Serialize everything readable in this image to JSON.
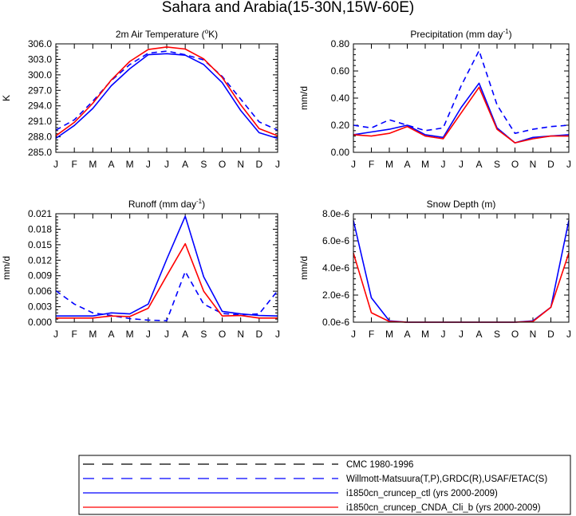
{
  "figure": {
    "title": "Sahara and Arabia(15-30N,15W-60E)"
  },
  "legend": {
    "entries": [
      {
        "label": "CMC 1980-1996",
        "color": "#000000",
        "dash": true
      },
      {
        "label": "Willmott-Matsuura(T,P),GRDC(R),USAF/ETAC(S)",
        "color": "#0000ff",
        "dash": true
      },
      {
        "label": "i1850cn_cruncep_ctl (yrs 2000-2009)",
        "color": "#0000ff",
        "dash": false
      },
      {
        "label": "i1850cn_cruncep_CNDA_Cli_b (yrs 2000-2009)",
        "color": "#ff0000",
        "dash": false
      }
    ]
  },
  "chart_data": [
    {
      "type": "line",
      "title": "2m Air Temperature (°K)",
      "title_parts": {
        "pre": "2m Air Temperature (",
        "sup": "o",
        "post": "K)"
      },
      "xlabel": "",
      "ylabel": "K",
      "categories": [
        "J",
        "F",
        "M",
        "A",
        "M",
        "J",
        "J",
        "A",
        "S",
        "O",
        "N",
        "D",
        "J"
      ],
      "ylim": [
        285.0,
        306.0
      ],
      "yticks": [
        285.0,
        288.0,
        291.0,
        294.0,
        297.0,
        300.0,
        303.0,
        306.0
      ],
      "ytick_labels": [
        "285.0",
        "288.0",
        "291.0",
        "294.0",
        "297.0",
        "300.0",
        "303.0",
        "306.0"
      ],
      "series": [
        {
          "name": "Willmott-Matsuura(T,P),GRDC(R),USAF/ETAC(S)",
          "color": "#0000ff",
          "dash": true,
          "values": [
            289.3,
            291.3,
            294.9,
            298.9,
            302.0,
            304.2,
            304.6,
            303.9,
            302.9,
            299.7,
            295.3,
            290.9,
            289.3
          ]
        },
        {
          "name": "i1850cn_cruncep_ctl (yrs 2000-2009)",
          "color": "#0000ff",
          "dash": false,
          "values": [
            287.7,
            290.2,
            293.5,
            297.9,
            301.2,
            303.9,
            304.1,
            303.8,
            302.0,
            298.5,
            293.1,
            288.8,
            287.7
          ]
        },
        {
          "name": "i1850cn_cruncep_CNDA_Cli_b (yrs 2000-2009)",
          "color": "#ff0000",
          "dash": false,
          "values": [
            288.2,
            290.8,
            294.5,
            299.0,
            302.6,
            304.9,
            305.4,
            305.0,
            303.1,
            299.5,
            294.2,
            289.6,
            288.2
          ]
        }
      ]
    },
    {
      "type": "line",
      "title": "Precipitation (mm day⁻¹)",
      "title_parts": {
        "pre": "Precipitation (mm day",
        "sup": "-1",
        "post": ")"
      },
      "xlabel": "",
      "ylabel": "mm/d",
      "categories": [
        "J",
        "F",
        "M",
        "A",
        "M",
        "J",
        "J",
        "A",
        "S",
        "O",
        "N",
        "D",
        "J"
      ],
      "ylim": [
        0.0,
        0.8
      ],
      "yticks": [
        0.0,
        0.2,
        0.4,
        0.6,
        0.8
      ],
      "ytick_labels": [
        "0.00",
        "0.20",
        "0.40",
        "0.60",
        "0.80"
      ],
      "series": [
        {
          "name": "Willmott-Matsuura(T,P),GRDC(R),USAF/ETAC(S)",
          "color": "#0000ff",
          "dash": true,
          "values": [
            0.2,
            0.18,
            0.24,
            0.2,
            0.16,
            0.18,
            0.49,
            0.75,
            0.35,
            0.14,
            0.17,
            0.19,
            0.2
          ]
        },
        {
          "name": "i1850cn_cruncep_ctl (yrs 2000-2009)",
          "color": "#0000ff",
          "dash": false,
          "values": [
            0.13,
            0.15,
            0.17,
            0.2,
            0.13,
            0.11,
            0.33,
            0.51,
            0.18,
            0.07,
            0.11,
            0.12,
            0.13
          ]
        },
        {
          "name": "i1850cn_cruncep_CNDA_Cli_b (yrs 2000-2009)",
          "color": "#ff0000",
          "dash": false,
          "values": [
            0.13,
            0.12,
            0.14,
            0.19,
            0.12,
            0.1,
            0.29,
            0.48,
            0.17,
            0.07,
            0.1,
            0.12,
            0.12
          ]
        }
      ]
    },
    {
      "type": "line",
      "title": "Runoff (mm day⁻¹)",
      "title_parts": {
        "pre": "Runoff (mm day",
        "sup": "-1",
        "post": ")"
      },
      "xlabel": "",
      "ylabel": "mm/d",
      "categories": [
        "J",
        "F",
        "M",
        "A",
        "M",
        "J",
        "J",
        "A",
        "S",
        "O",
        "N",
        "D",
        "J"
      ],
      "ylim": [
        0.0,
        0.021
      ],
      "yticks": [
        0.0,
        0.003,
        0.006,
        0.009,
        0.012,
        0.015,
        0.018,
        0.021
      ],
      "ytick_labels": [
        "0.000",
        "0.003",
        "0.006",
        "0.009",
        "0.012",
        "0.015",
        "0.018",
        "0.021"
      ],
      "series": [
        {
          "name": "Willmott-Matsuura(T,P),GRDC(R),USAF/ETAC(S)",
          "color": "#0000ff",
          "dash": true,
          "values": [
            0.0061,
            0.0035,
            0.0018,
            0.0013,
            0.0007,
            0.0004,
            0.0003,
            0.0098,
            0.0035,
            0.0017,
            0.0014,
            0.0016,
            0.0061
          ]
        },
        {
          "name": "i1850cn_cruncep_ctl (yrs 2000-2009)",
          "color": "#0000ff",
          "dash": false,
          "values": [
            0.0012,
            0.0012,
            0.0012,
            0.0018,
            0.0016,
            0.0035,
            0.0122,
            0.0205,
            0.0088,
            0.0021,
            0.0016,
            0.0013,
            0.0012
          ]
        },
        {
          "name": "i1850cn_cruncep_CNDA_Cli_b (yrs 2000-2009)",
          "color": "#ff0000",
          "dash": false,
          "values": [
            0.0008,
            0.0008,
            0.0008,
            0.0012,
            0.0011,
            0.0027,
            0.009,
            0.0152,
            0.006,
            0.0012,
            0.0013,
            0.0008,
            0.0008
          ]
        }
      ]
    },
    {
      "type": "line",
      "title": "Snow Depth (m)",
      "title_parts": {
        "pre": "Snow Depth (m)",
        "sup": "",
        "post": ""
      },
      "xlabel": "",
      "ylabel": "mm/d",
      "categories": [
        "J",
        "F",
        "M",
        "A",
        "M",
        "J",
        "J",
        "A",
        "S",
        "O",
        "N",
        "D",
        "J"
      ],
      "ylim": [
        0.0,
        8e-06
      ],
      "yticks": [
        0.0,
        2e-06,
        4e-06,
        6e-06,
        8e-06
      ],
      "ytick_labels": [
        "0.0e-6",
        "2.0e-6",
        "4.0e-6",
        "6.0e-6",
        "8.0e-6"
      ],
      "series": [
        {
          "name": "i1850cn_cruncep_ctl (yrs 2000-2009)",
          "color": "#0000ff",
          "dash": false,
          "values": [
            7.5e-06,
            1.8e-06,
            1e-07,
            0.0,
            0.0,
            0.0,
            0.0,
            0.0,
            0.0,
            0.0,
            1e-07,
            1.1e-06,
            7.5e-06
          ]
        },
        {
          "name": "i1850cn_cruncep_CNDA_Cli_b (yrs 2000-2009)",
          "color": "#ff0000",
          "dash": false,
          "values": [
            5.1e-06,
            7e-07,
            5e-08,
            0.0,
            0.0,
            0.0,
            0.0,
            0.0,
            0.0,
            0.0,
            5e-08,
            1.1e-06,
            5.1e-06
          ]
        }
      ]
    }
  ]
}
